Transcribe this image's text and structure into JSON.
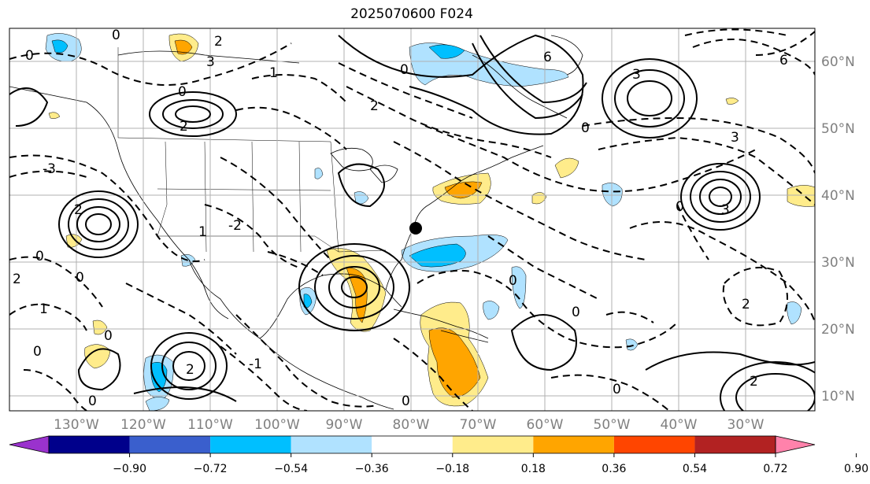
{
  "title": "2025070600 F024",
  "lat_labels": [
    "60°N",
    "50°N",
    "40°N",
    "30°N",
    "20°N",
    "10°N"
  ],
  "lon_labels": [
    "130°W",
    "120°W",
    "110°W",
    "100°W",
    "90°W",
    "80°W",
    "70°W",
    "60°W",
    "50°W",
    "40°W",
    "30°W"
  ],
  "colorbar": {
    "colors": [
      "#9a32cd",
      "#00008b",
      "#3a5fcd",
      "#00bfff",
      "#b0e2ff",
      "#ffffff",
      "#ffec8b",
      "#ffa500",
      "#ff4500",
      "#b22222",
      "#ff82ab"
    ],
    "tick_labels": [
      "−0.90",
      "−0.72",
      "−0.54",
      "−0.36",
      "−0.18",
      "0.18",
      "0.36",
      "0.54",
      "0.72",
      "0.90"
    ]
  },
  "contour_labels": [
    {
      "text": "0"
    },
    {
      "text": "0"
    },
    {
      "text": "3"
    },
    {
      "text": "2"
    },
    {
      "text": "1"
    },
    {
      "text": "-3"
    },
    {
      "text": "2"
    },
    {
      "text": "0"
    },
    {
      "text": "6"
    },
    {
      "text": "3"
    },
    {
      "text": "0"
    },
    {
      "text": "6"
    },
    {
      "text": "3"
    },
    {
      "text": "3"
    },
    {
      "text": "0"
    },
    {
      "text": "2"
    },
    {
      "text": "0"
    },
    {
      "text": "2"
    },
    {
      "text": "1"
    },
    {
      "text": "-2"
    },
    {
      "text": "0"
    },
    {
      "text": "2"
    },
    {
      "text": "0"
    },
    {
      "text": "0"
    },
    {
      "text": "0"
    },
    {
      "text": "1"
    },
    {
      "text": "-1"
    },
    {
      "text": "0"
    },
    {
      "text": "2"
    },
    {
      "text": "0"
    },
    {
      "text": "0"
    },
    {
      "text": "2"
    },
    {
      "text": "0"
    },
    {
      "text": "0"
    },
    {
      "text": "2"
    }
  ]
}
